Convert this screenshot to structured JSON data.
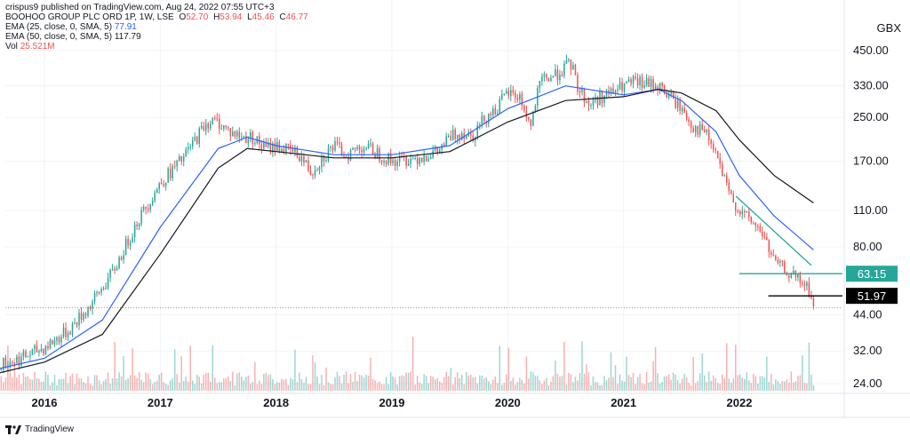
{
  "published": "crispus9 published on TradingView.com, Aug 24, 2022 07:55 UTC+3",
  "legend": {
    "symbol": "BOOHOO GROUP PLC ORD 1P, 1W, LSE",
    "ohlc": [
      {
        "k": "O",
        "v": "52.70"
      },
      {
        "k": "H",
        "v": "53.94"
      },
      {
        "k": "L",
        "v": "45.46"
      },
      {
        "k": "C",
        "v": "46.77"
      }
    ],
    "ema25_label": "EMA (25, close, 0, SMA, 5)",
    "ema25_value": "77.91",
    "ema50_label": "EMA (50, close, 0, SMA, 5)",
    "ema50_value": "117.79",
    "vol_label": "Vol",
    "vol_value": "25.521M"
  },
  "currency": "GBX",
  "footer": {
    "brand": "TradingView",
    "logo_icon": "tradingview-logo-icon"
  },
  "colors": {
    "up": "#26a69a",
    "down": "#ef5350",
    "ema25": "#2962ff",
    "ema50": "#131722",
    "support_black": "#000000",
    "resistance_green": "#26a69a",
    "last_price_line": "#ef5350"
  },
  "chart_data": {
    "type": "candlestick",
    "scale": "log",
    "x_axis": {
      "ticks": [
        "2016",
        "2017",
        "2018",
        "2019",
        "2020",
        "2021",
        "2022"
      ]
    },
    "y_axis": {
      "ticks": [
        "450.00",
        "330.00",
        "250.00",
        "170.00",
        "110.00",
        "80.00",
        "44.00",
        "32.00",
        "24.00"
      ],
      "tick_values": [
        450,
        330,
        250,
        170,
        110,
        80,
        44,
        32,
        24
      ]
    },
    "price_path": {
      "x": [
        2015.55,
        2015.8,
        2016.0,
        2016.2,
        2016.4,
        2016.6,
        2016.8,
        2017.0,
        2017.2,
        2017.4,
        2017.5,
        2017.6,
        2017.7,
        2017.8,
        2017.9,
        2018.0,
        2018.2,
        2018.3,
        2018.4,
        2018.5,
        2018.6,
        2018.75,
        2018.9,
        2019.0,
        2019.2,
        2019.4,
        2019.5,
        2019.6,
        2019.7,
        2019.8,
        2019.9,
        2020.0,
        2020.1,
        2020.2,
        2020.25,
        2020.3,
        2020.4,
        2020.5,
        2020.55,
        2020.6,
        2020.7,
        2020.8,
        2020.9,
        2021.0,
        2021.1,
        2021.2,
        2021.3,
        2021.4,
        2021.5,
        2021.6,
        2021.7,
        2021.8,
        2021.9,
        2022.0,
        2022.1,
        2022.2,
        2022.3,
        2022.4,
        2022.5,
        2022.6,
        2022.64
      ],
      "close": [
        28,
        30,
        33,
        38,
        48,
        65,
        100,
        140,
        175,
        240,
        240,
        220,
        210,
        210,
        190,
        195,
        180,
        155,
        175,
        195,
        180,
        195,
        180,
        170,
        175,
        185,
        210,
        220,
        215,
        250,
        270,
        310,
        300,
        230,
        300,
        350,
        360,
        390,
        400,
        330,
        280,
        300,
        310,
        330,
        340,
        335,
        330,
        300,
        270,
        230,
        220,
        180,
        130,
        110,
        100,
        90,
        70,
        65,
        60,
        55,
        46.77
      ]
    },
    "ema25": {
      "x": [
        2015.55,
        2016.0,
        2016.5,
        2017.0,
        2017.5,
        2017.75,
        2018.0,
        2018.5,
        2019.0,
        2019.5,
        2020.0,
        2020.5,
        2021.0,
        2021.3,
        2021.5,
        2021.8,
        2022.0,
        2022.3,
        2022.64
      ],
      "values": [
        27,
        30,
        42,
        95,
        190,
        210,
        195,
        180,
        180,
        195,
        270,
        330,
        305,
        320,
        290,
        220,
        150,
        105,
        77.91
      ]
    },
    "ema50": {
      "x": [
        2015.55,
        2016.0,
        2016.5,
        2017.0,
        2017.5,
        2017.75,
        2018.0,
        2018.5,
        2019.0,
        2019.5,
        2020.0,
        2020.5,
        2021.0,
        2021.3,
        2021.5,
        2021.8,
        2022.0,
        2022.3,
        2022.64
      ],
      "values": [
        26,
        29,
        37,
        75,
        160,
        190,
        185,
        175,
        175,
        185,
        240,
        290,
        300,
        320,
        310,
        265,
        205,
        150,
        117.79
      ]
    },
    "levels": [
      {
        "label": "63.15",
        "value": 63.15,
        "color": "#26a69a"
      },
      {
        "label": "51.97",
        "value": 51.97,
        "color": "#000000"
      }
    ],
    "trendline": {
      "x": [
        2021.97,
        2022.62
      ],
      "values": [
        125,
        68
      ]
    },
    "volume_unit": "M",
    "last_volume": 25.521
  }
}
